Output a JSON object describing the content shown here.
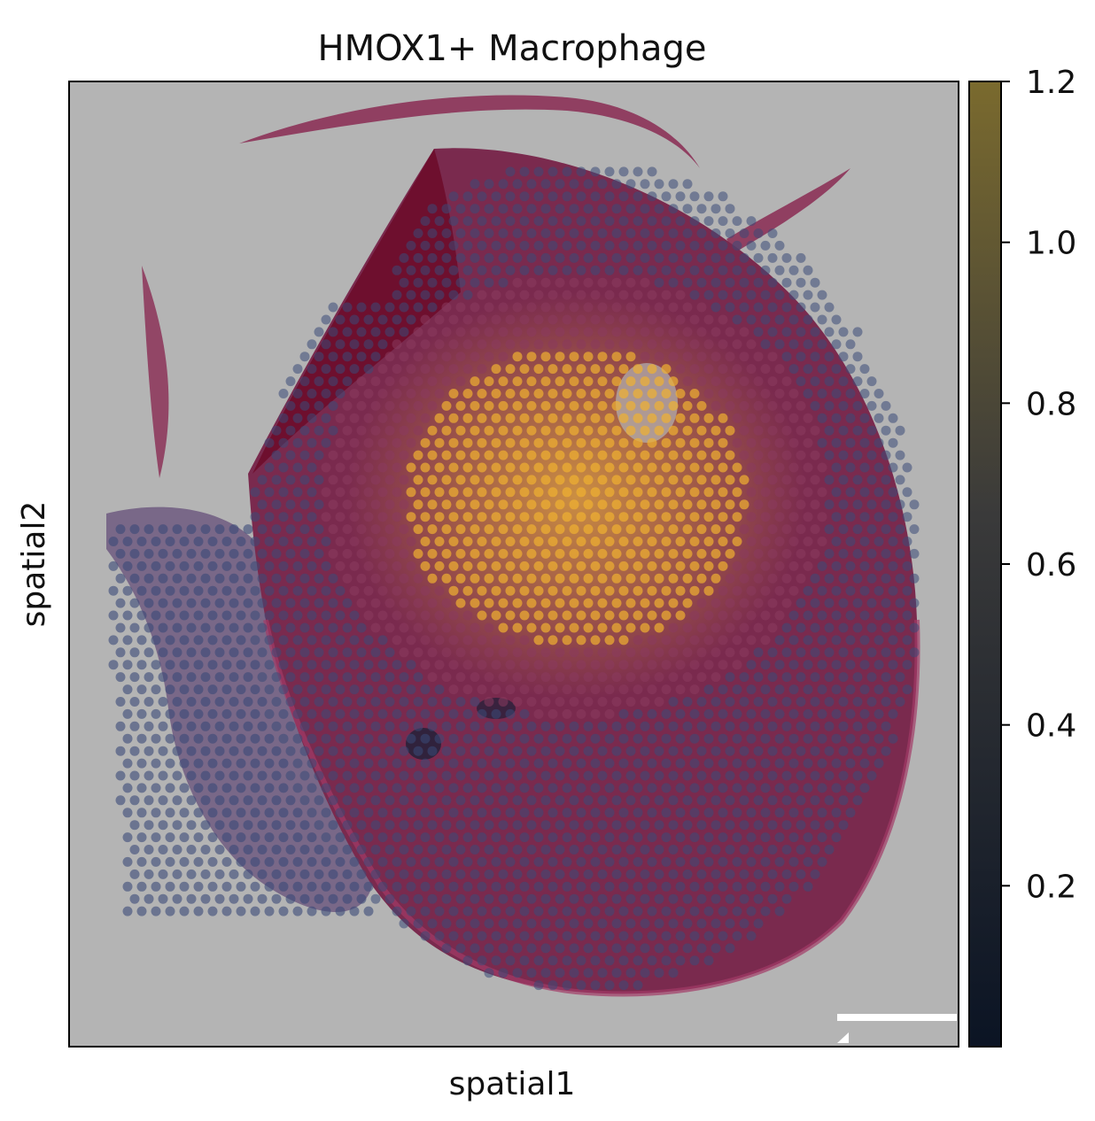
{
  "chart_data": {
    "type": "scatter",
    "title": "HMOX1+ Macrophage",
    "xlabel": "spatial1",
    "ylabel": "spatial2",
    "grid": false,
    "colorbar": {
      "range": [
        0.0,
        1.2
      ],
      "ticks": [
        0.2,
        0.4,
        0.6,
        0.8,
        1.0,
        1.2
      ],
      "tick_labels": [
        "0.2",
        "0.4",
        "0.6",
        "0.8",
        "1.0",
        "1.2"
      ],
      "colors": [
        "#0b1424",
        "#3a3a3a",
        "#7a6a2e"
      ]
    },
    "spot_colors": {
      "low": "#3b4a78",
      "mid": "#8a3a5e",
      "high": "#f0b030"
    },
    "tissue_colors": {
      "background": "#b4b4b4",
      "tissue": "#7a2a4e",
      "dense": "#6e0f2e"
    }
  }
}
